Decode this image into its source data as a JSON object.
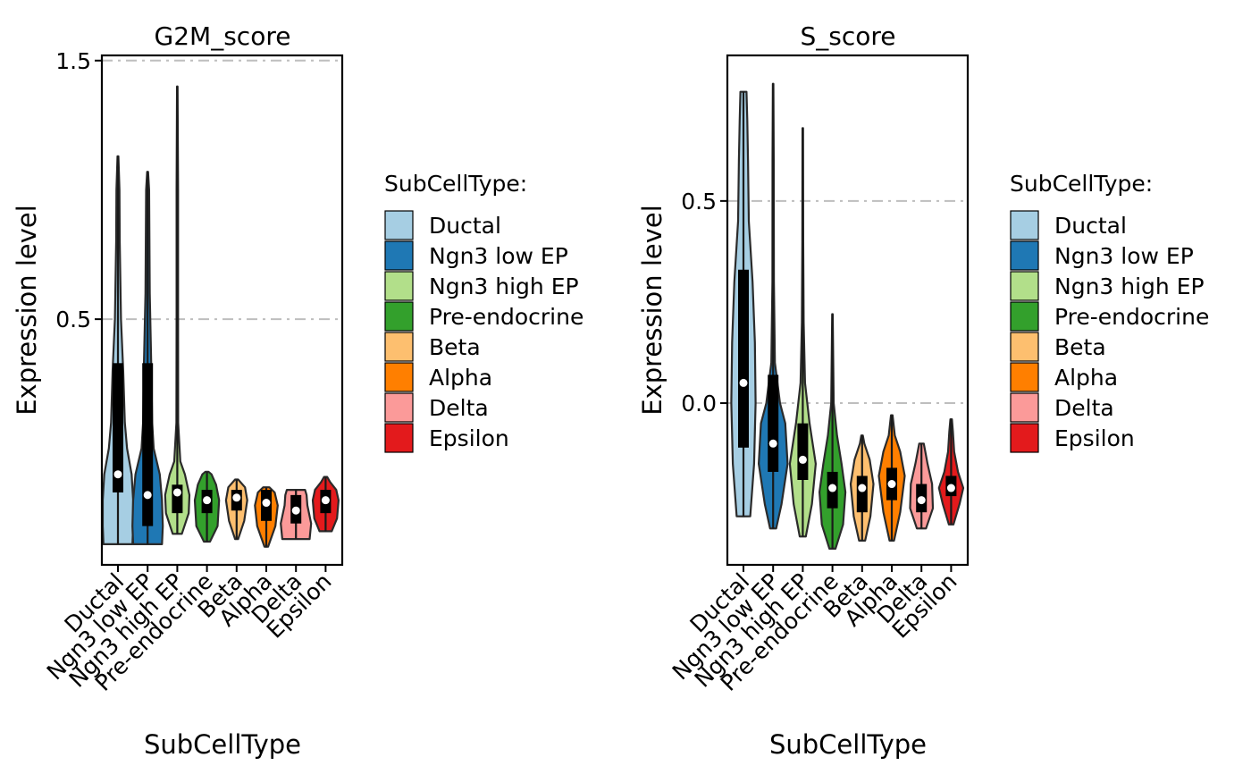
{
  "colors": {
    "Ductal": "#A6CEE3",
    "Ngn3 low EP": "#1F78B4",
    "Ngn3 high EP": "#B2DF8A",
    "Pre-endocrine": "#33A02C",
    "Beta": "#FDBF6F",
    "Alpha": "#FF7F00",
    "Delta": "#FB9A99",
    "Epsilon": "#E31A1C",
    "gridline": "#BEBEBE"
  },
  "chart_data": [
    {
      "type": "violin",
      "title": "G2M_score",
      "xlabel": "SubCellType",
      "ylabel": "Expression level",
      "ylim": [
        -0.45,
        1.52
      ],
      "yticks": [
        0.5,
        1.5
      ],
      "ytick_labels": [
        "0.5",
        "1.5"
      ],
      "reference_lines": [
        0.5,
        1.5
      ],
      "grid": false,
      "legend_title": "SubCellType:",
      "legend_position": "right",
      "categories": [
        "Ductal",
        "Ngn3 low EP",
        "Ngn3 high EP",
        "Pre-endocrine",
        "Beta",
        "Alpha",
        "Delta",
        "Epsilon"
      ],
      "series": [
        {
          "name": "Ductal",
          "min": -0.37,
          "max": 1.13,
          "q1": -0.17,
          "median": -0.1,
          "q3": 0.33,
          "mean": -0.1,
          "shape": [
            [
              -0.37,
              0.95
            ],
            [
              -0.3,
              1.0
            ],
            [
              -0.2,
              1.0
            ],
            [
              -0.1,
              0.9
            ],
            [
              0.0,
              0.6
            ],
            [
              0.1,
              0.45
            ],
            [
              0.3,
              0.35
            ],
            [
              0.5,
              0.2
            ],
            [
              0.8,
              0.12
            ],
            [
              1.0,
              0.1
            ],
            [
              1.13,
              0.03
            ]
          ]
        },
        {
          "name": "Ngn3 low EP",
          "min": -0.37,
          "max": 1.07,
          "q1": -0.3,
          "median": -0.18,
          "q3": 0.33,
          "mean": -0.18,
          "shape": [
            [
              -0.37,
              0.95
            ],
            [
              -0.3,
              1.0
            ],
            [
              -0.2,
              0.95
            ],
            [
              -0.1,
              0.8
            ],
            [
              0.0,
              0.4
            ],
            [
              0.1,
              0.3
            ],
            [
              0.3,
              0.25
            ],
            [
              0.6,
              0.14
            ],
            [
              1.0,
              0.1
            ],
            [
              1.07,
              0.03
            ]
          ]
        },
        {
          "name": "Ngn3 high EP",
          "min": -0.33,
          "max": 1.4,
          "q1": -0.25,
          "median": -0.17,
          "q3": -0.14,
          "mean": -0.17,
          "shape": [
            [
              -0.33,
              0.3
            ],
            [
              -0.25,
              0.75
            ],
            [
              -0.18,
              0.8
            ],
            [
              -0.1,
              0.5
            ],
            [
              -0.05,
              0.2
            ],
            [
              0.1,
              0.06
            ],
            [
              0.5,
              0.05
            ],
            [
              1.0,
              0.05
            ],
            [
              1.4,
              0.02
            ]
          ]
        },
        {
          "name": "Pre-endocrine",
          "min": -0.36,
          "max": -0.09,
          "q1": -0.25,
          "median": -0.2,
          "q3": -0.16,
          "mean": -0.2,
          "shape": [
            [
              -0.36,
              0.2
            ],
            [
              -0.3,
              0.7
            ],
            [
              -0.2,
              0.8
            ],
            [
              -0.14,
              0.6
            ],
            [
              -0.1,
              0.3
            ],
            [
              -0.09,
              0.1
            ]
          ]
        },
        {
          "name": "Beta",
          "min": -0.35,
          "max": -0.12,
          "q1": -0.24,
          "median": -0.19,
          "q3": -0.16,
          "mean": -0.19,
          "shape": [
            [
              -0.35,
              0.1
            ],
            [
              -0.28,
              0.5
            ],
            [
              -0.2,
              0.7
            ],
            [
              -0.15,
              0.55
            ],
            [
              -0.12,
              0.1
            ]
          ]
        },
        {
          "name": "Alpha",
          "min": -0.38,
          "max": -0.15,
          "q1": -0.28,
          "median": -0.21,
          "q3": -0.16,
          "mean": -0.21,
          "shape": [
            [
              -0.38,
              0.12
            ],
            [
              -0.3,
              0.6
            ],
            [
              -0.22,
              0.75
            ],
            [
              -0.17,
              0.55
            ],
            [
              -0.15,
              0.2
            ]
          ]
        },
        {
          "name": "Delta",
          "min": -0.35,
          "max": -0.16,
          "q1": -0.29,
          "median": -0.24,
          "q3": -0.18,
          "mean": -0.24,
          "shape": [
            [
              -0.35,
              0.9
            ],
            [
              -0.29,
              1.0
            ],
            [
              -0.22,
              0.75
            ],
            [
              -0.18,
              0.7
            ],
            [
              -0.16,
              0.6
            ]
          ]
        },
        {
          "name": "Epsilon",
          "min": -0.32,
          "max": -0.11,
          "q1": -0.25,
          "median": -0.2,
          "q3": -0.16,
          "mean": -0.2,
          "shape": [
            [
              -0.32,
              0.4
            ],
            [
              -0.27,
              0.75
            ],
            [
              -0.2,
              0.85
            ],
            [
              -0.16,
              0.7
            ],
            [
              -0.13,
              0.3
            ],
            [
              -0.11,
              0.1
            ]
          ]
        }
      ]
    },
    {
      "type": "violin",
      "title": "S_score",
      "xlabel": "SubCellType",
      "ylabel": "Expression level",
      "ylim": [
        -0.4,
        0.86
      ],
      "yticks": [
        0.0,
        0.5
      ],
      "ytick_labels": [
        "0.0",
        "0.5"
      ],
      "reference_lines": [
        0.0,
        0.5
      ],
      "grid": false,
      "legend_title": "SubCellType:",
      "legend_position": "right",
      "categories": [
        "Ductal",
        "Ngn3 low EP",
        "Ngn3 high EP",
        "Pre-endocrine",
        "Beta",
        "Alpha",
        "Delta",
        "Epsilon"
      ],
      "series": [
        {
          "name": "Ductal",
          "min": -0.28,
          "max": 0.77,
          "q1": -0.11,
          "median": 0.05,
          "q3": 0.33,
          "mean": 0.05,
          "shape": [
            [
              -0.28,
              0.45
            ],
            [
              -0.15,
              0.7
            ],
            [
              0.0,
              0.8
            ],
            [
              0.15,
              0.75
            ],
            [
              0.3,
              0.6
            ],
            [
              0.45,
              0.35
            ],
            [
              0.6,
              0.3
            ],
            [
              0.7,
              0.25
            ],
            [
              0.77,
              0.2
            ]
          ]
        },
        {
          "name": "Ngn3 low EP",
          "min": -0.31,
          "max": 0.79,
          "q1": -0.17,
          "median": -0.1,
          "q3": 0.07,
          "mean": -0.1,
          "shape": [
            [
              -0.31,
              0.2
            ],
            [
              -0.25,
              0.55
            ],
            [
              -0.15,
              0.95
            ],
            [
              -0.05,
              0.8
            ],
            [
              0.0,
              0.45
            ],
            [
              0.1,
              0.12
            ],
            [
              0.3,
              0.05
            ],
            [
              0.6,
              0.04
            ],
            [
              0.79,
              0.02
            ]
          ]
        },
        {
          "name": "Ngn3 high EP",
          "min": -0.33,
          "max": 0.68,
          "q1": -0.19,
          "median": -0.14,
          "q3": -0.05,
          "mean": -0.14,
          "shape": [
            [
              -0.33,
              0.2
            ],
            [
              -0.25,
              0.6
            ],
            [
              -0.15,
              0.85
            ],
            [
              -0.05,
              0.45
            ],
            [
              0.05,
              0.15
            ],
            [
              0.2,
              0.06
            ],
            [
              0.4,
              0.03
            ],
            [
              0.68,
              0.02
            ]
          ]
        },
        {
          "name": "Pre-endocrine",
          "min": -0.36,
          "max": 0.22,
          "q1": -0.26,
          "median": -0.21,
          "q3": -0.17,
          "mean": -0.21,
          "shape": [
            [
              -0.36,
              0.2
            ],
            [
              -0.3,
              0.7
            ],
            [
              -0.22,
              0.85
            ],
            [
              -0.15,
              0.6
            ],
            [
              -0.08,
              0.3
            ],
            [
              0.0,
              0.08
            ],
            [
              0.22,
              0.02
            ]
          ]
        },
        {
          "name": "Beta",
          "min": -0.34,
          "max": -0.08,
          "q1": -0.27,
          "median": -0.21,
          "q3": -0.18,
          "mean": -0.21,
          "shape": [
            [
              -0.34,
              0.2
            ],
            [
              -0.28,
              0.55
            ],
            [
              -0.2,
              0.75
            ],
            [
              -0.14,
              0.5
            ],
            [
              -0.1,
              0.15
            ],
            [
              -0.08,
              0.05
            ]
          ]
        },
        {
          "name": "Alpha",
          "min": -0.34,
          "max": -0.03,
          "q1": -0.24,
          "median": -0.2,
          "q3": -0.16,
          "mean": -0.2,
          "shape": [
            [
              -0.34,
              0.15
            ],
            [
              -0.27,
              0.55
            ],
            [
              -0.18,
              0.85
            ],
            [
              -0.12,
              0.55
            ],
            [
              -0.08,
              0.2
            ],
            [
              -0.03,
              0.05
            ]
          ]
        },
        {
          "name": "Delta",
          "min": -0.31,
          "max": -0.1,
          "q1": -0.27,
          "median": -0.24,
          "q3": -0.2,
          "mean": -0.24,
          "shape": [
            [
              -0.31,
              0.3
            ],
            [
              -0.26,
              0.75
            ],
            [
              -0.2,
              0.7
            ],
            [
              -0.15,
              0.4
            ],
            [
              -0.12,
              0.25
            ],
            [
              -0.1,
              0.15
            ]
          ]
        },
        {
          "name": "Epsilon",
          "min": -0.3,
          "max": -0.04,
          "q1": -0.23,
          "median": -0.21,
          "q3": -0.18,
          "mean": -0.21,
          "shape": [
            [
              -0.3,
              0.15
            ],
            [
              -0.25,
              0.55
            ],
            [
              -0.21,
              0.8
            ],
            [
              -0.17,
              0.45
            ],
            [
              -0.12,
              0.2
            ],
            [
              -0.07,
              0.12
            ],
            [
              -0.04,
              0.05
            ]
          ]
        }
      ]
    }
  ]
}
